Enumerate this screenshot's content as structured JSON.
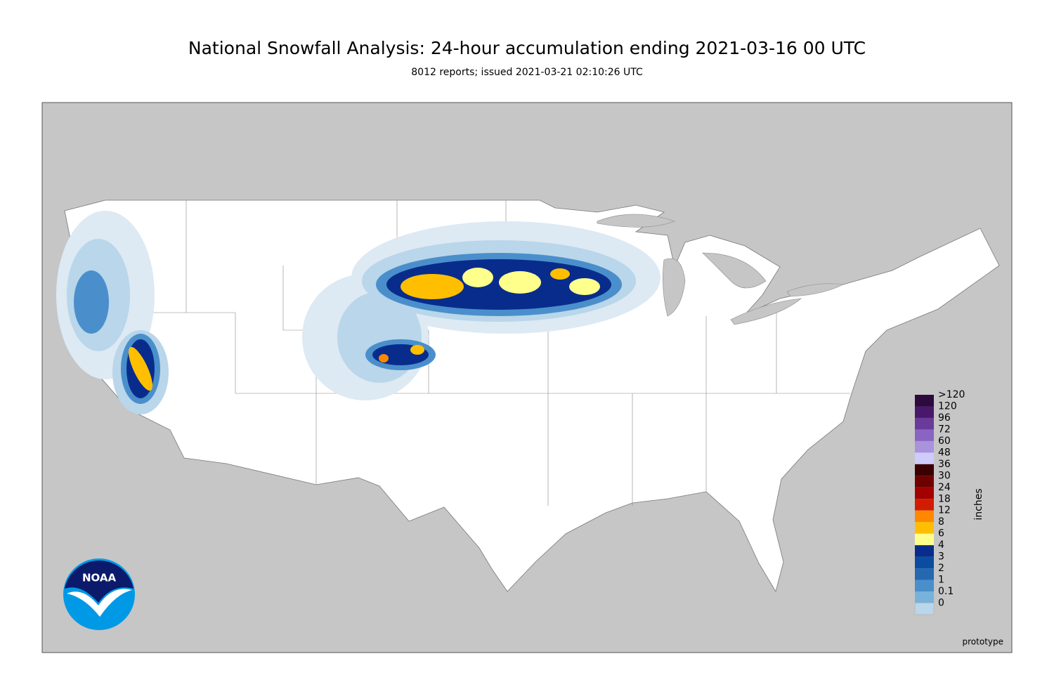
{
  "header": {
    "title": "National Snowfall Analysis: 24-hour accumulation ending 2021-03-16 00 UTC",
    "subtitle": "8012 reports; issued 2021-03-21 02:10:26 UTC"
  },
  "legend": {
    "unit": "inches",
    "entries": [
      {
        "label": ">120",
        "color": "#2c0a3c"
      },
      {
        "label": "120",
        "color": "#4a186a"
      },
      {
        "label": "96",
        "color": "#6a3b9a"
      },
      {
        "label": "72",
        "color": "#8a64c2"
      },
      {
        "label": "60",
        "color": "#a993dc"
      },
      {
        "label": "48",
        "color": "#cfcbfa"
      },
      {
        "label": "36",
        "color": "#3a0000"
      },
      {
        "label": "30",
        "color": "#6e0000"
      },
      {
        "label": "24",
        "color": "#a30000"
      },
      {
        "label": "18",
        "color": "#d21c00"
      },
      {
        "label": "12",
        "color": "#ff8800"
      },
      {
        "label": "8",
        "color": "#ffbf00"
      },
      {
        "label": "6",
        "color": "#ffff8c"
      },
      {
        "label": "4",
        "color": "#082c8c"
      },
      {
        "label": "3",
        "color": "#0c4ca0"
      },
      {
        "label": "2",
        "color": "#2468b0"
      },
      {
        "label": "1",
        "color": "#4a8fcb"
      },
      {
        "label": "0.1",
        "color": "#76b2dc"
      },
      {
        "label": "0",
        "color": "#b9d6ea"
      }
    ]
  },
  "footer": {
    "note": "prototype"
  },
  "logo": {
    "text": "NOAA"
  }
}
